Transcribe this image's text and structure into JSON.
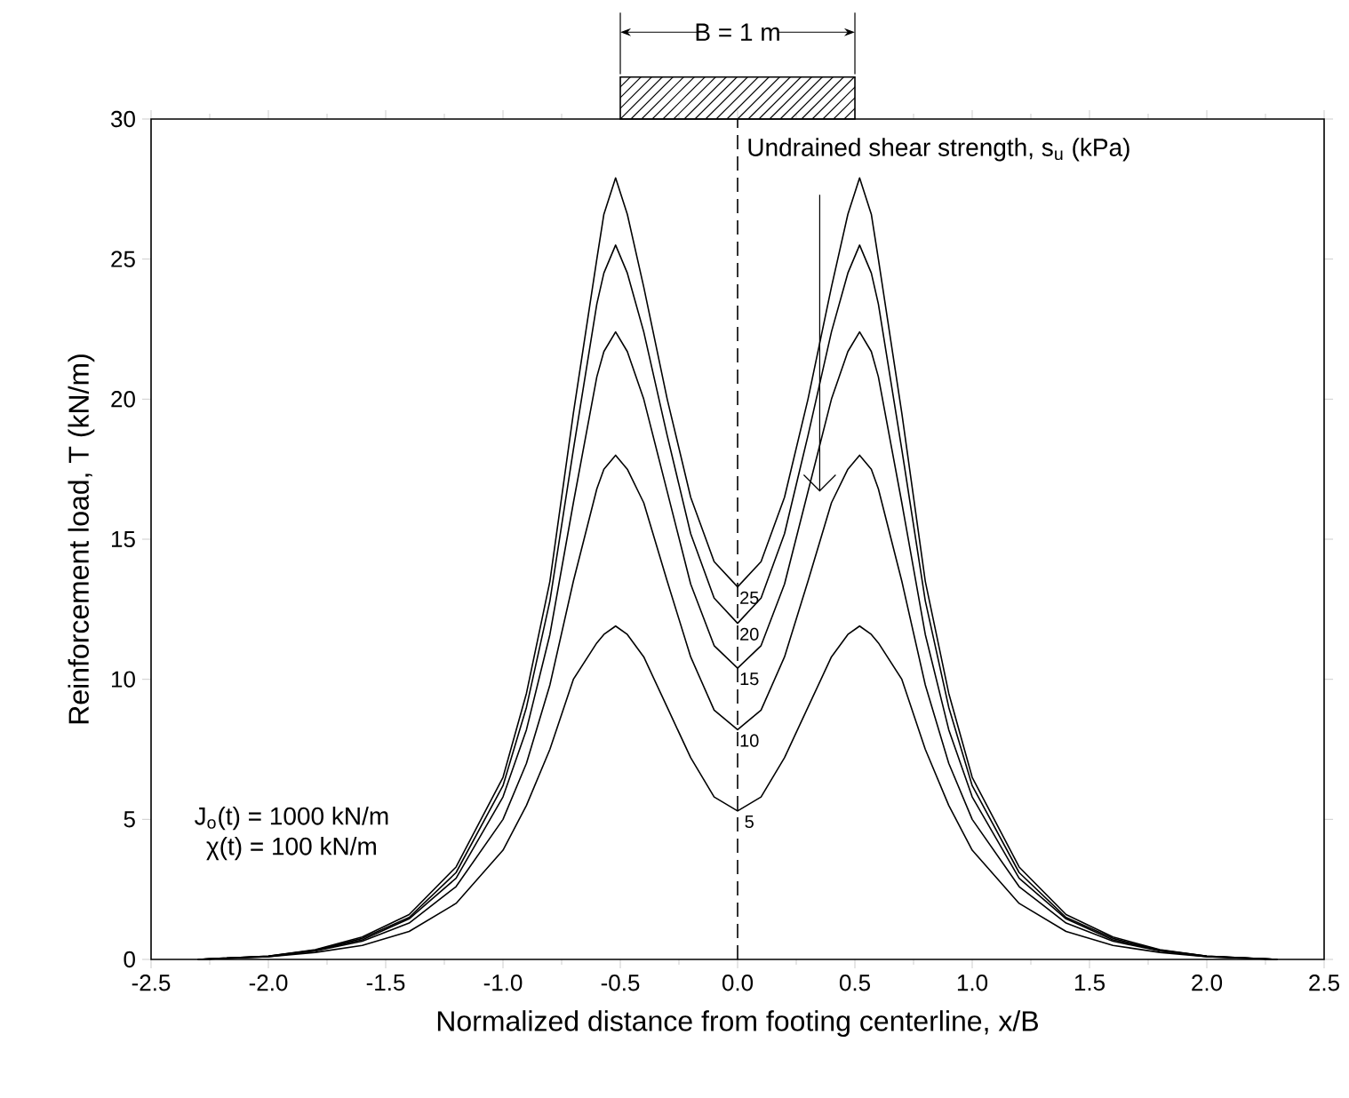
{
  "chart_data": {
    "type": "line",
    "xlabel": "Normalized distance from footing centerline, x/B",
    "ylabel": "Reinforcement load, T (kN/m)",
    "annotations": [
      "B = 1 m",
      "Undrained shear strength, s$_{u}$ (kPa)",
      "J$_{o}$(t) = 1000 kN/m",
      "χ(t) = 100 kN/m"
    ],
    "x": [
      -2.3,
      -2.0,
      -1.8,
      -1.6,
      -1.4,
      -1.2,
      -1.0,
      -0.9,
      -0.8,
      -0.7,
      -0.6,
      -0.57,
      -0.52,
      -0.47,
      -0.4,
      -0.3,
      -0.2,
      -0.1,
      0,
      0.1,
      0.2,
      0.3,
      0.4,
      0.47,
      0.52,
      0.57,
      0.6,
      0.7,
      0.8,
      0.9,
      1.0,
      1.2,
      1.4,
      1.6,
      1.8,
      2.0,
      2.3
    ],
    "series": [
      {
        "name": "5",
        "color": "#000000",
        "values": [
          0,
          0.1,
          0.25,
          0.5,
          1.0,
          2.0,
          3.9,
          5.5,
          7.5,
          10.0,
          11.3,
          11.6,
          11.9,
          11.6,
          10.8,
          9.0,
          7.2,
          5.8,
          5.3,
          5.8,
          7.2,
          9.0,
          10.8,
          11.6,
          11.9,
          11.6,
          11.3,
          10.0,
          7.5,
          5.5,
          3.9,
          2.0,
          1.0,
          0.5,
          0.25,
          0.1,
          0
        ]
      },
      {
        "name": "10",
        "color": "#000000",
        "values": [
          0,
          0.1,
          0.3,
          0.65,
          1.3,
          2.6,
          5.0,
          7.0,
          9.8,
          13.5,
          16.8,
          17.5,
          18.0,
          17.5,
          16.3,
          13.5,
          10.8,
          8.9,
          8.2,
          8.9,
          10.8,
          13.5,
          16.3,
          17.5,
          18.0,
          17.5,
          16.8,
          13.5,
          9.8,
          7.0,
          5.0,
          2.6,
          1.3,
          0.65,
          0.3,
          0.1,
          0
        ]
      },
      {
        "name": "15",
        "color": "#000000",
        "values": [
          0,
          0.11,
          0.32,
          0.7,
          1.45,
          2.9,
          5.8,
          8.2,
          11.6,
          16.3,
          20.8,
          21.7,
          22.4,
          21.7,
          20.0,
          16.7,
          13.4,
          11.2,
          10.4,
          11.2,
          13.4,
          16.7,
          20.0,
          21.7,
          22.4,
          21.7,
          20.8,
          16.3,
          11.6,
          8.2,
          5.8,
          2.9,
          1.45,
          0.7,
          0.32,
          0.11,
          0
        ]
      },
      {
        "name": "20",
        "color": "#000000",
        "values": [
          0,
          0.12,
          0.33,
          0.75,
          1.5,
          3.1,
          6.2,
          9.0,
          12.8,
          18.2,
          23.4,
          24.5,
          25.5,
          24.5,
          22.4,
          18.7,
          15.2,
          12.9,
          12.0,
          12.9,
          15.2,
          18.7,
          22.4,
          24.5,
          25.5,
          24.5,
          23.4,
          18.2,
          12.8,
          9.0,
          6.2,
          3.1,
          1.5,
          0.75,
          0.33,
          0.12,
          0
        ]
      },
      {
        "name": "25",
        "color": "#000000",
        "values": [
          0,
          0.12,
          0.35,
          0.8,
          1.6,
          3.3,
          6.5,
          9.5,
          13.5,
          19.5,
          25.0,
          26.6,
          27.9,
          26.6,
          24.0,
          20.0,
          16.5,
          14.2,
          13.3,
          14.2,
          16.5,
          20.0,
          24.0,
          26.6,
          27.9,
          26.6,
          25.0,
          19.5,
          13.5,
          9.5,
          6.5,
          3.3,
          1.6,
          0.8,
          0.35,
          0.12,
          0
        ]
      }
    ],
    "xlim": [
      -2.5,
      2.5
    ],
    "ylim": [
      0,
      30
    ],
    "xticks": [
      {
        "value": -2.5,
        "label": "-2.5"
      },
      {
        "value": -2,
        "label": "-2.0"
      },
      {
        "value": -1.5,
        "label": "-1.5"
      },
      {
        "value": -1,
        "label": "-1.0"
      },
      {
        "value": -0.5,
        "label": "-0.5"
      },
      {
        "value": 0,
        "label": "0.0"
      },
      {
        "value": 0.5,
        "label": "0.5"
      },
      {
        "value": 1,
        "label": "1.0"
      },
      {
        "value": 1.5,
        "label": "1.5"
      },
      {
        "value": 2,
        "label": "2.0"
      },
      {
        "value": 2.5,
        "label": "2.5"
      }
    ],
    "yticks": [
      0,
      5,
      10,
      15,
      20,
      25,
      30
    ],
    "ref_lines": [
      {
        "axis": "x",
        "value": 0,
        "label": null,
        "line_style": "dashed",
        "color": "#000000"
      }
    ],
    "grid": false,
    "legend": false,
    "marker": "none",
    "line_style": "solid"
  }
}
